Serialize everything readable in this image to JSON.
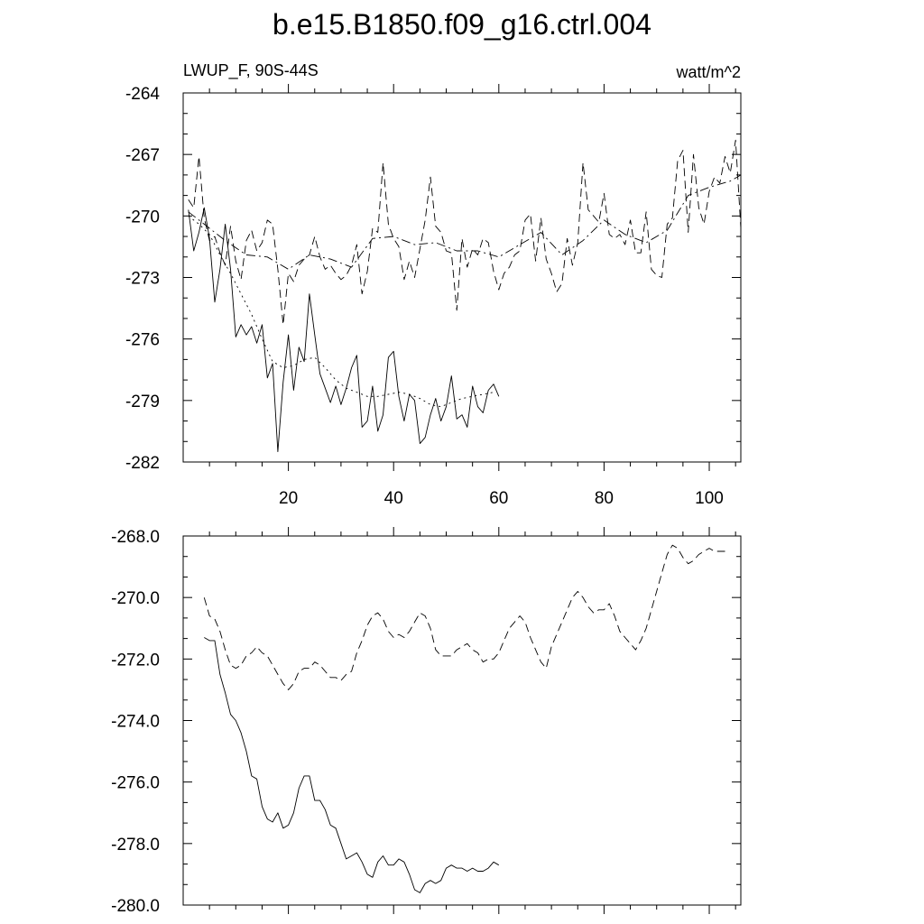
{
  "figure": {
    "title": "b.e15.B1850.f09_g16.ctrl.004"
  },
  "chart_data": [
    {
      "type": "line",
      "title": "",
      "left_label": "LWUP_F, 90S-44S",
      "right_label": "watt/m^2",
      "xlim": [
        0,
        106
      ],
      "ylim": [
        -282,
        -264
      ],
      "x_ticks": [
        20,
        40,
        60,
        80,
        100
      ],
      "x_tick_labels": [
        "20",
        "40",
        "60",
        "80",
        "100"
      ],
      "y_ticks": [
        -264,
        -267,
        -270,
        -273,
        -276,
        -279,
        -282
      ],
      "y_tick_labels": [
        "-264",
        "-267",
        "-270",
        "-273",
        "-276",
        "-279",
        "-282"
      ],
      "grid": false,
      "series": [
        {
          "style": "solid",
          "x": [
            1,
            2,
            3,
            4,
            5,
            6,
            7,
            8,
            9,
            10,
            11,
            12,
            13,
            14,
            15,
            16,
            17,
            18,
            19,
            20,
            21,
            22,
            23,
            24,
            25,
            26,
            27,
            28,
            29,
            30,
            31,
            32,
            33,
            34,
            35,
            36,
            37,
            38,
            39,
            40,
            41,
            42,
            43,
            44,
            45,
            46,
            47,
            48,
            49,
            50,
            51,
            52,
            53,
            54,
            55,
            56,
            57,
            58,
            59,
            60
          ],
          "values": [
            -269.7,
            -271.7,
            -270.8,
            -269.6,
            -271.1,
            -274.2,
            -272.6,
            -270.4,
            -272.6,
            -275.9,
            -275.3,
            -275.8,
            -275.4,
            -276.2,
            -275.3,
            -277.9,
            -277.2,
            -281.5,
            -278.1,
            -275.8,
            -278.5,
            -276.4,
            -277.1,
            -273.8,
            -275.8,
            -277.7,
            -278.4,
            -279.1,
            -278.3,
            -279.2,
            -278.4,
            -277.4,
            -276.8,
            -280.3,
            -280.0,
            -278.3,
            -280.5,
            -279.7,
            -276.9,
            -276.6,
            -278.8,
            -280.0,
            -278.7,
            -279.0,
            -281.1,
            -280.8,
            -279.7,
            -278.9,
            -280.0,
            -279.3,
            -277.8,
            -279.9,
            -279.7,
            -280.3,
            -278.3,
            -279.3,
            -279.6,
            -278.5,
            -278.2,
            -278.8
          ]
        },
        {
          "style": "dashed",
          "x": [
            1,
            2,
            3,
            4,
            5,
            6,
            7,
            8,
            9,
            10,
            11,
            12,
            13,
            14,
            15,
            16,
            17,
            18,
            19,
            20,
            21,
            22,
            23,
            24,
            25,
            26,
            27,
            28,
            29,
            30,
            31,
            32,
            33,
            34,
            35,
            36,
            37,
            38,
            39,
            40,
            41,
            42,
            43,
            44,
            45,
            46,
            47,
            48,
            49,
            50,
            51,
            52,
            53,
            54,
            55,
            56,
            57,
            58,
            59,
            60,
            61,
            62,
            63,
            64,
            65,
            66,
            67,
            68,
            69,
            70,
            71,
            72,
            73,
            74,
            75,
            76,
            77,
            78,
            79,
            80,
            81,
            82,
            83,
            84,
            85,
            86,
            87,
            88,
            89,
            90,
            91,
            92,
            93,
            94,
            95,
            96,
            97,
            98,
            99,
            100,
            101,
            102,
            103,
            104,
            105,
            106
          ],
          "values": [
            -269.2,
            -269.6,
            -267.1,
            -270.1,
            -271.2,
            -271.0,
            -271.8,
            -272.4,
            -270.5,
            -272.2,
            -273.1,
            -271.2,
            -270.7,
            -271.7,
            -271.3,
            -270.2,
            -270.4,
            -272.6,
            -275.3,
            -272.8,
            -273.2,
            -272.4,
            -272.1,
            -271.9,
            -271.0,
            -272.0,
            -272.6,
            -272.4,
            -272.8,
            -273.1,
            -272.9,
            -272.4,
            -271.4,
            -273.8,
            -272.7,
            -270.6,
            -270.8,
            -267.4,
            -270.4,
            -271.1,
            -271.5,
            -273.1,
            -272.2,
            -273.0,
            -271.6,
            -270.2,
            -268.1,
            -270.5,
            -270.8,
            -271.7,
            -271.8,
            -274.6,
            -271.1,
            -272.5,
            -271.6,
            -271.9,
            -271.1,
            -271.3,
            -272.7,
            -273.6,
            -272.8,
            -272.5,
            -271.9,
            -271.7,
            -270.2,
            -269.9,
            -272.2,
            -270.1,
            -272.1,
            -272.8,
            -273.7,
            -273.3,
            -271.1,
            -272.4,
            -271.3,
            -267.4,
            -269.7,
            -270.0,
            -270.3,
            -268.9,
            -270.9,
            -271.1,
            -270.9,
            -271.4,
            -270.2,
            -271.8,
            -271.8,
            -269.8,
            -272.6,
            -272.9,
            -273.0,
            -270.4,
            -270.1,
            -267.3,
            -266.8,
            -270.8,
            -267.0,
            -269.6,
            -270.4,
            -268.8,
            -268.1,
            -268.4,
            -267.1,
            -267.9,
            -266.3,
            -270.6
          ]
        },
        {
          "style": "dotted",
          "x": [
            1,
            3,
            5,
            7,
            9,
            11,
            13,
            15,
            17,
            19,
            21,
            23,
            25,
            27,
            29,
            31,
            33,
            35,
            37,
            39,
            41,
            43,
            45,
            47,
            49,
            51,
            53,
            55,
            57,
            59
          ],
          "values": [
            -270.0,
            -270.4,
            -270.9,
            -271.9,
            -272.8,
            -273.8,
            -274.8,
            -276.0,
            -277.1,
            -277.4,
            -277.3,
            -277.0,
            -276.9,
            -277.4,
            -278.0,
            -278.4,
            -278.6,
            -278.8,
            -278.8,
            -278.7,
            -278.6,
            -278.7,
            -278.9,
            -279.2,
            -279.3,
            -279.1,
            -278.9,
            -278.8,
            -278.7,
            -278.6
          ]
        },
        {
          "style": "dashdot",
          "x": [
            1,
            4,
            8,
            12,
            16,
            20,
            24,
            28,
            32,
            36,
            40,
            44,
            48,
            52,
            56,
            60,
            64,
            68,
            72,
            76,
            80,
            84,
            88,
            92,
            96,
            100,
            104,
            106
          ],
          "values": [
            -269.8,
            -270.4,
            -271.2,
            -271.9,
            -272.0,
            -272.6,
            -271.9,
            -272.1,
            -272.5,
            -271.1,
            -271.0,
            -271.4,
            -271.3,
            -271.7,
            -271.7,
            -272.0,
            -271.4,
            -270.8,
            -271.9,
            -271.2,
            -270.2,
            -270.9,
            -271.3,
            -270.7,
            -269.0,
            -268.6,
            -268.3,
            -268.0
          ]
        }
      ]
    },
    {
      "type": "line",
      "title": "",
      "xlim": [
        0,
        106
      ],
      "ylim": [
        -280,
        -268
      ],
      "y_ticks": [
        -268,
        -270,
        -272,
        -274,
        -276,
        -278,
        -280
      ],
      "y_tick_labels": [
        "-268.0",
        "-270.0",
        "-272.0",
        "-274.0",
        "-276.0",
        "-278.0",
        "-280.0"
      ],
      "grid": false,
      "series": [
        {
          "style": "solid",
          "x": [
            4,
            5,
            6,
            7,
            8,
            9,
            10,
            11,
            12,
            13,
            14,
            15,
            16,
            17,
            18,
            19,
            20,
            21,
            22,
            23,
            24,
            25,
            26,
            27,
            28,
            29,
            30,
            31,
            32,
            33,
            34,
            35,
            36,
            37,
            38,
            39,
            40,
            41,
            42,
            43,
            44,
            45,
            46,
            47,
            48,
            49,
            50,
            51,
            52,
            53,
            54,
            55,
            56,
            57,
            58,
            59,
            60
          ],
          "values": [
            -271.3,
            -271.4,
            -271.4,
            -272.5,
            -273.1,
            -273.8,
            -274.0,
            -274.4,
            -275.0,
            -275.8,
            -275.9,
            -276.8,
            -277.2,
            -277.3,
            -277.0,
            -277.5,
            -277.4,
            -277.0,
            -276.2,
            -275.8,
            -275.8,
            -276.6,
            -276.6,
            -276.9,
            -277.4,
            -277.5,
            -278.0,
            -278.5,
            -278.4,
            -278.3,
            -278.6,
            -279.0,
            -279.1,
            -278.6,
            -278.4,
            -278.7,
            -278.7,
            -278.5,
            -278.6,
            -279.0,
            -279.5,
            -279.6,
            -279.3,
            -279.2,
            -279.3,
            -279.2,
            -278.8,
            -278.7,
            -278.8,
            -278.8,
            -278.9,
            -278.8,
            -278.9,
            -278.9,
            -278.8,
            -278.6,
            -278.7
          ]
        },
        {
          "style": "dashed",
          "x": [
            4,
            5,
            6,
            7,
            8,
            9,
            10,
            11,
            12,
            13,
            14,
            15,
            16,
            17,
            18,
            19,
            20,
            21,
            22,
            23,
            24,
            25,
            26,
            27,
            28,
            29,
            30,
            31,
            32,
            33,
            34,
            35,
            36,
            37,
            38,
            39,
            40,
            41,
            42,
            43,
            44,
            45,
            46,
            47,
            48,
            49,
            50,
            51,
            52,
            53,
            54,
            55,
            56,
            57,
            58,
            59,
            60,
            61,
            62,
            63,
            64,
            65,
            66,
            67,
            68,
            69,
            70,
            71,
            72,
            73,
            74,
            75,
            76,
            77,
            78,
            79,
            80,
            81,
            82,
            83,
            84,
            85,
            86,
            87,
            88,
            89,
            90,
            91,
            92,
            93,
            94,
            95,
            96,
            97,
            98,
            99,
            100,
            101,
            102,
            103
          ],
          "values": [
            -270.0,
            -270.6,
            -270.7,
            -271.1,
            -271.7,
            -272.2,
            -272.3,
            -272.2,
            -271.9,
            -271.8,
            -271.6,
            -271.8,
            -271.9,
            -272.2,
            -272.5,
            -272.8,
            -273.0,
            -272.8,
            -272.4,
            -272.3,
            -272.3,
            -272.1,
            -272.2,
            -272.4,
            -272.6,
            -272.6,
            -272.7,
            -272.5,
            -272.4,
            -271.8,
            -271.4,
            -270.9,
            -270.6,
            -270.5,
            -270.7,
            -271.1,
            -271.3,
            -271.2,
            -271.3,
            -271.1,
            -270.8,
            -270.5,
            -270.6,
            -271.0,
            -271.7,
            -271.9,
            -271.9,
            -271.9,
            -271.7,
            -271.6,
            -271.5,
            -271.7,
            -271.8,
            -272.1,
            -272.0,
            -272.0,
            -271.8,
            -271.4,
            -271.0,
            -270.8,
            -270.6,
            -270.8,
            -271.3,
            -271.7,
            -272.1,
            -272.3,
            -271.6,
            -271.2,
            -270.8,
            -270.4,
            -270.0,
            -269.8,
            -270.0,
            -270.3,
            -270.5,
            -270.4,
            -270.4,
            -270.2,
            -270.6,
            -271.1,
            -271.3,
            -271.5,
            -271.7,
            -271.4,
            -271.0,
            -270.4,
            -269.8,
            -269.2,
            -268.6,
            -268.3,
            -268.4,
            -268.7,
            -268.9,
            -268.8,
            -268.6,
            -268.5,
            -268.4,
            -268.5,
            -268.5,
            -268.5
          ]
        }
      ]
    }
  ]
}
